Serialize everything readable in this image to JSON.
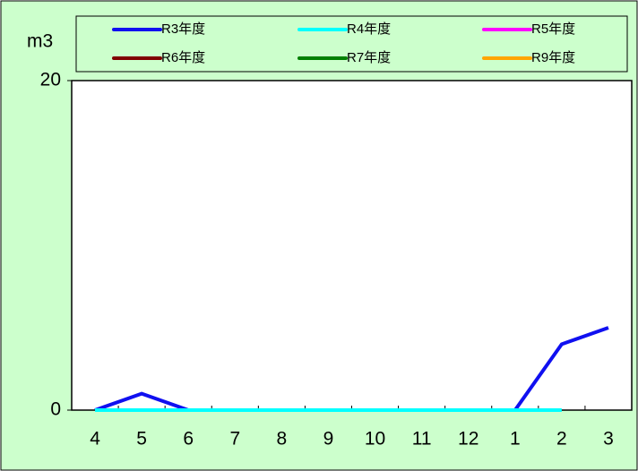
{
  "chart_data": {
    "type": "line",
    "ylabel": "m3",
    "categories": [
      "4",
      "5",
      "6",
      "7",
      "8",
      "9",
      "10",
      "11",
      "12",
      "1",
      "2",
      "3"
    ],
    "series": [
      {
        "name": "R3年度",
        "color": "#1010f0",
        "values": [
          0,
          1,
          0,
          0,
          0,
          0,
          0,
          0,
          0,
          0,
          4,
          5
        ]
      },
      {
        "name": "R4年度",
        "color": "#00ffff",
        "values": [
          0,
          0,
          0,
          0,
          0,
          0,
          0,
          0,
          0,
          0,
          0,
          null
        ]
      },
      {
        "name": "R5年度",
        "color": "#ff00ff",
        "values": [
          null,
          null,
          null,
          null,
          null,
          null,
          null,
          null,
          null,
          null,
          null,
          null
        ]
      },
      {
        "name": "R6年度",
        "color": "#800000",
        "values": [
          null,
          null,
          null,
          null,
          null,
          null,
          null,
          null,
          null,
          null,
          null,
          null
        ]
      },
      {
        "name": "R7年度",
        "color": "#008000",
        "values": [
          null,
          null,
          null,
          null,
          null,
          null,
          null,
          null,
          null,
          null,
          null,
          null
        ]
      },
      {
        "name": "R9年度",
        "color": "#ffa500",
        "values": [
          null,
          null,
          null,
          null,
          null,
          null,
          null,
          null,
          null,
          null,
          null,
          null
        ]
      }
    ],
    "ylim": [
      0,
      20
    ],
    "yticks": [
      0,
      20
    ]
  }
}
